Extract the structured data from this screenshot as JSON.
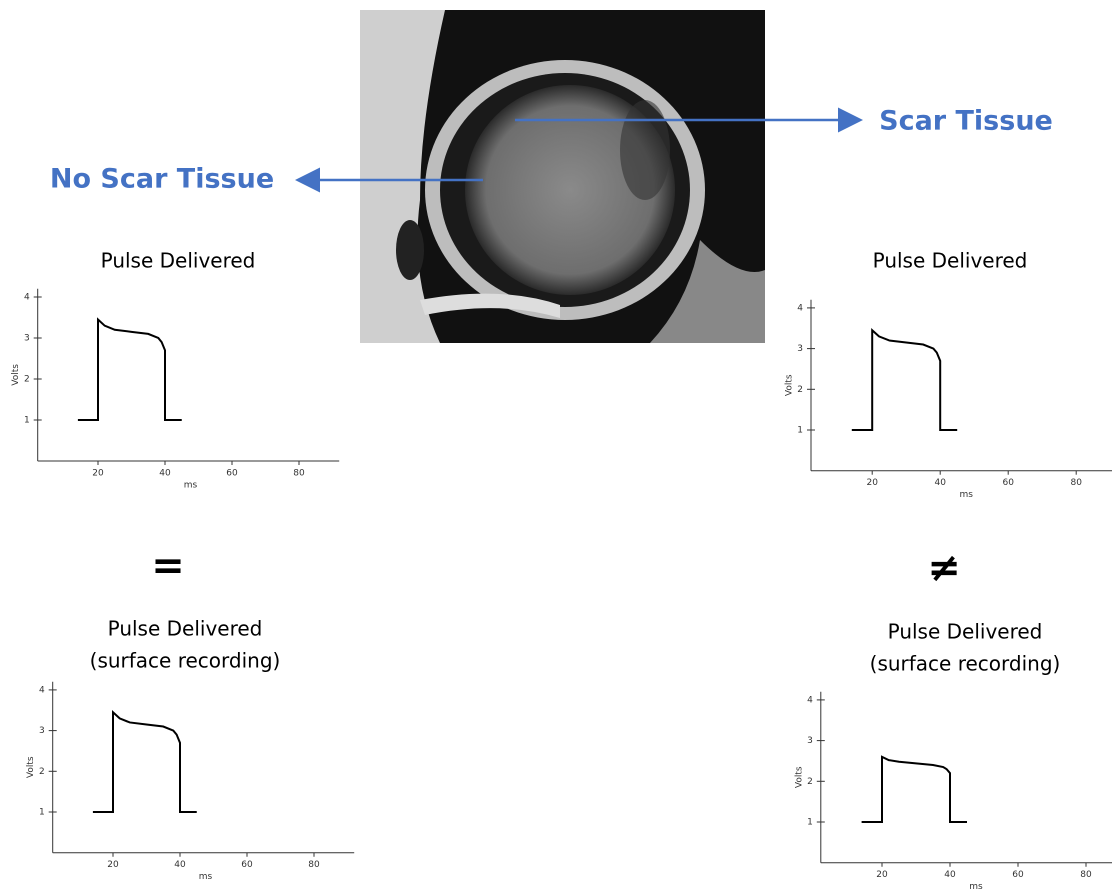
{
  "annotations": {
    "left_label": "No Scar Tissue",
    "right_label": "Scar Tissue",
    "left_symbol": "=",
    "right_symbol": "≠"
  },
  "chart_data": [
    {
      "type": "line",
      "title": "Pulse Delivered",
      "xlabel": "ms",
      "ylabel": "Volts",
      "x": [
        14,
        20,
        20,
        22,
        25,
        30,
        35,
        38,
        39,
        40,
        40,
        45
      ],
      "series": [
        {
          "color": "#000000",
          "values": [
            1,
            1,
            3.45,
            3.3,
            3.2,
            3.15,
            3.1,
            3.0,
            2.9,
            2.7,
            1,
            1
          ]
        }
      ],
      "xlim": [
        2,
        92
      ],
      "xticks": [
        20,
        40,
        60,
        80
      ],
      "ylim": [
        0,
        4.2
      ],
      "yticks": [
        1,
        2,
        3,
        4
      ]
    },
    {
      "type": "line",
      "title": "Pulse Delivered",
      "xlabel": "ms",
      "ylabel": "Volts",
      "x": [
        14,
        20,
        20,
        22,
        25,
        30,
        35,
        38,
        39,
        40,
        40,
        45
      ],
      "series": [
        {
          "color": "#000000",
          "values": [
            1,
            1,
            3.45,
            3.3,
            3.2,
            3.15,
            3.1,
            3.0,
            2.9,
            2.7,
            1,
            1
          ]
        }
      ],
      "xlim": [
        2,
        92
      ],
      "xticks": [
        20,
        40,
        60,
        80
      ],
      "ylim": [
        0,
        4.2
      ],
      "yticks": [
        1,
        2,
        3,
        4
      ]
    },
    {
      "type": "line",
      "title": "Pulse Delivered",
      "subtitle": "(surface recording)",
      "xlabel": "ms",
      "ylabel": "Volts",
      "x": [
        14,
        20,
        20,
        22,
        25,
        30,
        35,
        38,
        39,
        40,
        40,
        45
      ],
      "series": [
        {
          "color": "#000000",
          "values": [
            1,
            1,
            3.45,
            3.3,
            3.2,
            3.15,
            3.1,
            3.0,
            2.9,
            2.7,
            1,
            1
          ]
        }
      ],
      "xlim": [
        2,
        92
      ],
      "xticks": [
        20,
        40,
        60,
        80
      ],
      "ylim": [
        0,
        4.2
      ],
      "yticks": [
        1,
        2,
        3,
        4
      ]
    },
    {
      "type": "line",
      "title": "Pulse Delivered",
      "subtitle": "(surface recording)",
      "xlabel": "ms",
      "ylabel": "Volts",
      "x": [
        14,
        20,
        20,
        22,
        25,
        30,
        35,
        38,
        39,
        40,
        40,
        45
      ],
      "series": [
        {
          "color": "#000000",
          "values": [
            1,
            1,
            2.6,
            2.52,
            2.48,
            2.44,
            2.4,
            2.35,
            2.3,
            2.2,
            1,
            1
          ]
        }
      ],
      "xlim": [
        2,
        92
      ],
      "xticks": [
        20,
        40,
        60,
        80
      ],
      "ylim": [
        0,
        4.2
      ],
      "yticks": [
        1,
        2,
        3,
        4
      ]
    }
  ]
}
